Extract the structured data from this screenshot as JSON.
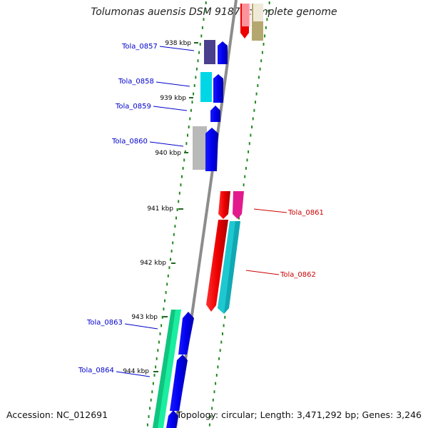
{
  "title": "Tolumonas auensis DSM 9187, complete genome",
  "footer": {
    "accession": "Accession: NC_012691",
    "summary": "Topology: circular; Length: 3,471,292 bp; Genes: 3,246"
  },
  "ticks": [
    "938 kbp",
    "939 kbp",
    "940 kbp",
    "941 kbp",
    "942 kbp",
    "943 kbp",
    "944 kbp"
  ],
  "genes": [
    {
      "label": "Tola_0857",
      "strand": "left",
      "color": "#0000cc"
    },
    {
      "label": "Tola_0858",
      "strand": "left",
      "color": "#0000cc"
    },
    {
      "label": "Tola_0859",
      "strand": "left",
      "color": "#0000cc"
    },
    {
      "label": "Tola_0860",
      "strand": "left",
      "color": "#0000cc"
    },
    {
      "label": "Tola_0861",
      "strand": "right",
      "color": "#cc0000"
    },
    {
      "label": "Tola_0862",
      "strand": "right",
      "color": "#cc0000"
    },
    {
      "label": "Tola_0863",
      "strand": "left",
      "color": "#0000cc"
    },
    {
      "label": "Tola_0864",
      "strand": "left",
      "color": "#0000cc"
    }
  ],
  "colors": {
    "backbone": "#8c8c8c",
    "dots": "#228822",
    "forward_arrow": "#0000ee",
    "reverse_arrow": "#ee0000"
  }
}
